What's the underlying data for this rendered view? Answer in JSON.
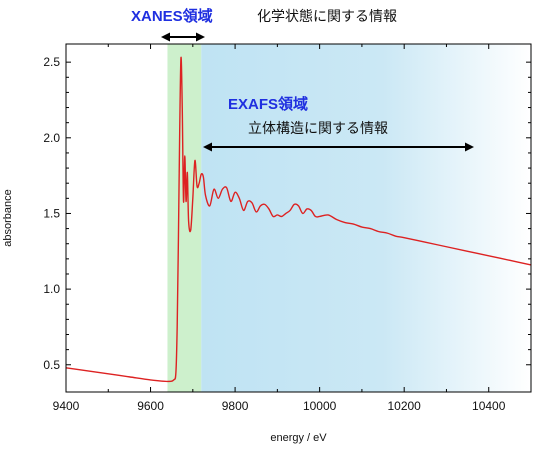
{
  "chart_data": {
    "type": "line",
    "xlabel": "energy / eV",
    "ylabel": "absorbance",
    "xlim": [
      9400,
      10500
    ],
    "ylim": [
      0.32,
      2.62
    ],
    "x_ticks": [
      9400,
      9600,
      9800,
      10000,
      10200,
      10400
    ],
    "y_ticks": [
      0.5,
      1.0,
      1.5,
      2.0,
      2.5
    ],
    "x_tick_labels": [
      "9400",
      "9600",
      "9800",
      "10000",
      "10200",
      "10400"
    ],
    "y_tick_labels": [
      "0.5",
      "1.0",
      "1.5",
      "2.0",
      "2.5"
    ],
    "grid": false,
    "line_color": "#dd2222",
    "series": [
      {
        "x": [
          9400,
          9450,
          9500,
          9550,
          9600,
          9640,
          9655,
          9660,
          9663,
          9666,
          9669,
          9672,
          9675,
          9678,
          9681,
          9684,
          9687,
          9690,
          9695,
          9700,
          9705,
          9710,
          9715,
          9720,
          9725,
          9730,
          9740,
          9750,
          9760,
          9770,
          9780,
          9790,
          9800,
          9810,
          9820,
          9830,
          9840,
          9850,
          9860,
          9870,
          9880,
          9890,
          9900,
          9910,
          9920,
          9930,
          9940,
          9950,
          9960,
          9970,
          9980,
          9990,
          10000,
          10020,
          10040,
          10060,
          10080,
          10100,
          10120,
          10140,
          10160,
          10180,
          10200,
          10250,
          10300,
          10350,
          10400,
          10450,
          10500
        ],
        "y": [
          0.48,
          0.46,
          0.44,
          0.42,
          0.4,
          0.39,
          0.4,
          0.45,
          0.75,
          1.35,
          2.05,
          2.53,
          2.2,
          1.58,
          1.88,
          1.58,
          1.77,
          1.45,
          1.39,
          1.6,
          1.85,
          1.68,
          1.7,
          1.76,
          1.74,
          1.62,
          1.55,
          1.66,
          1.6,
          1.66,
          1.67,
          1.58,
          1.64,
          1.6,
          1.52,
          1.58,
          1.57,
          1.51,
          1.55,
          1.56,
          1.53,
          1.48,
          1.49,
          1.48,
          1.5,
          1.52,
          1.56,
          1.55,
          1.5,
          1.53,
          1.52,
          1.48,
          1.48,
          1.49,
          1.46,
          1.44,
          1.43,
          1.41,
          1.4,
          1.38,
          1.37,
          1.35,
          1.34,
          1.31,
          1.28,
          1.25,
          1.22,
          1.19,
          1.16
        ]
      }
    ],
    "regions": [
      {
        "name": "XANES",
        "x_range": [
          9640,
          9720
        ],
        "color": "#cdf0cc"
      },
      {
        "name": "EXAFS",
        "x_range": [
          9720,
          10500
        ],
        "color": "#bfe3f3"
      }
    ]
  },
  "annotations": {
    "xanes_title": "XANES領域",
    "xanes_desc": "化学状態に関する情報",
    "exafs_title": "EXAFS領域",
    "exafs_desc": "立体構造に関する情報",
    "arrow_color": "#000000"
  }
}
